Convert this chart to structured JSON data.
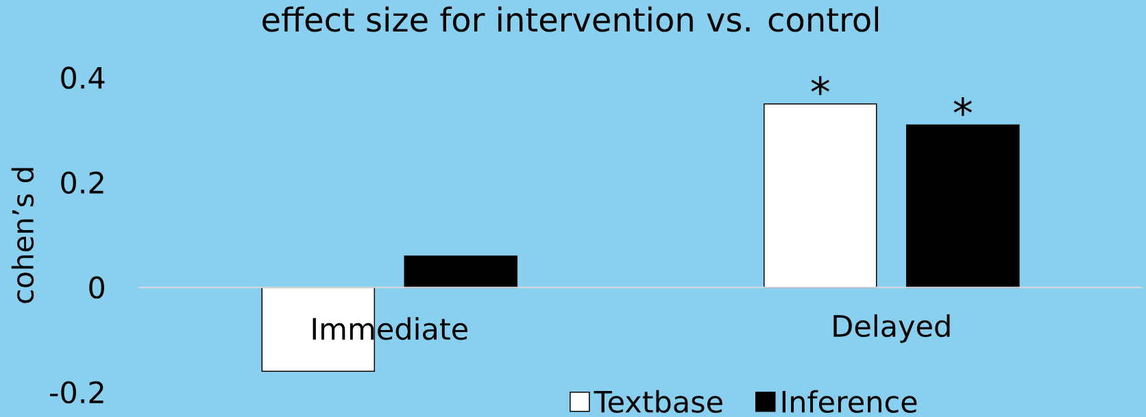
{
  "chart_data": {
    "type": "bar",
    "title": "effect size for intervention vs. control",
    "ylabel": "cohen’s d",
    "categories": [
      "Immediate",
      "Delayed"
    ],
    "series": [
      {
        "name": "Textbase",
        "color": "#ffffff",
        "values": [
          -0.16,
          0.35
        ]
      },
      {
        "name": "Inference",
        "color": "#000000",
        "values": [
          0.06,
          0.31
        ]
      }
    ],
    "ylim": [
      -0.2,
      0.4
    ],
    "yticks": [
      -0.2,
      0,
      0.2,
      0.4
    ],
    "legend": "bottom",
    "annotations": [
      "*",
      "*"
    ]
  }
}
